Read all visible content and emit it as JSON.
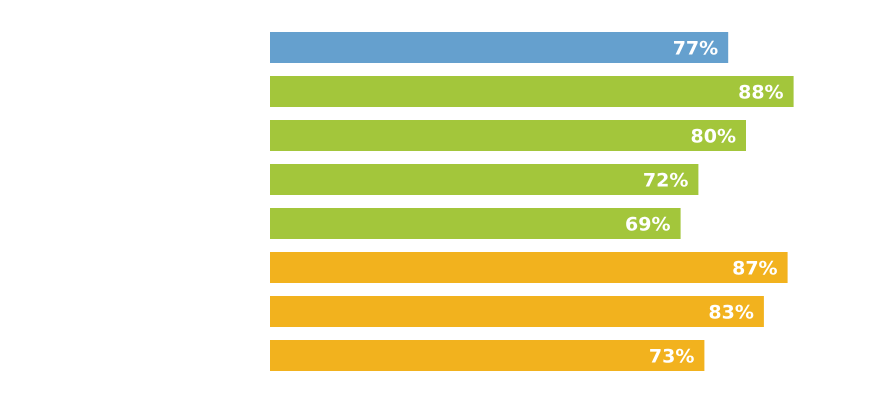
{
  "chart_data": {
    "type": "bar",
    "orientation": "horizontal",
    "values": [
      77,
      88,
      80,
      72,
      69,
      87,
      83,
      73
    ],
    "labels": [
      "77%",
      "88%",
      "80%",
      "72%",
      "69%",
      "87%",
      "83%",
      "73%"
    ],
    "colors": [
      "#65a0ce",
      "#a3c63b",
      "#a3c63b",
      "#a3c63b",
      "#a3c63b",
      "#f2b21e",
      "#f2b21e",
      "#f2b21e"
    ],
    "xlim": [
      0,
      100
    ],
    "grid": false,
    "value_label_color": "#ffffff"
  }
}
